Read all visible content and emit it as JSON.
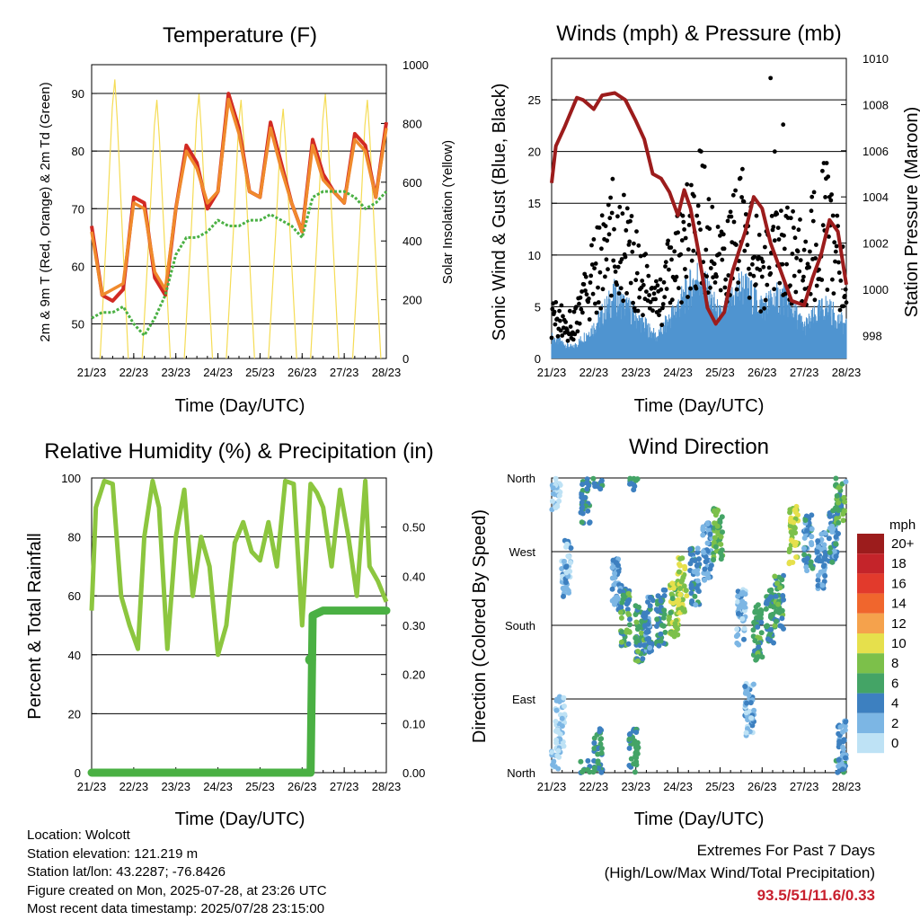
{
  "panels": {
    "temperature": {
      "title": "Temperature (F)",
      "ylabel_left": "2m & 9m T (Red, Orange) & 2m Td (Green)",
      "ylabel_right": "Solar Insolation (Yellow)",
      "xlabel": "Time (Day/UTC)"
    },
    "winds": {
      "title": "Winds (mph) & Pressure (mb)",
      "ylabel_left": "Sonic Wind & Gust (Blue, Black)",
      "ylabel_right": "Station Pressure (Maroon)",
      "xlabel": "Time (Day/UTC)"
    },
    "humidity": {
      "title": "Relative Humidity (%) & Precipitation (in)",
      "ylabel_left": "Percent & Total Rainfall",
      "xlabel": "Time (Day/UTC)"
    },
    "direction": {
      "title": "Wind Direction",
      "ylabel_left": "Direction (Colored By Speed)",
      "xlabel": "Time (Day/UTC)",
      "legend_title": "mph"
    }
  },
  "info": {
    "location": "Location: Wolcott",
    "elevation": "Station elevation: 121.219 m",
    "latlon": "Station lat/lon: 43.2287; -76.8426",
    "created": "Figure created on Mon, 2025-07-28, at 23:26 UTC",
    "timestamp": "Most recent data timestamp: 2025/07/28 23:15:00"
  },
  "extremes": {
    "line1": "Extremes For Past 7 Days",
    "line2": "(High/Low/Max Wind/Total Precipitation)",
    "values": "93.5/51/11.6/0.33"
  },
  "colors": {
    "temp_2m": "#d22a23",
    "temp_9m": "#f08a2c",
    "dewpoint": "#4ab043",
    "solar": "#f5dc55",
    "wind": "#4f94d0",
    "gust": "#000000",
    "pressure": "#9c1c1c",
    "rh": "#8cc63f",
    "precip": "#4ab043"
  },
  "chart_data": [
    {
      "type": "line",
      "title": "Temperature (F)",
      "xlabel": "Time (Day/UTC)",
      "ylabel": "2m & 9m T (Red, Orange) & 2m Td (Green)",
      "ylabel_right": "Solar Insolation (Yellow)",
      "x_ticks": [
        "21/23",
        "22/23",
        "23/23",
        "24/23",
        "25/23",
        "26/23",
        "27/23",
        "28/23"
      ],
      "x": [
        0,
        0.25,
        0.5,
        0.75,
        1,
        1.25,
        1.5,
        1.75,
        2,
        2.25,
        2.5,
        2.75,
        3,
        3.25,
        3.5,
        3.75,
        4,
        4.25,
        4.5,
        4.75,
        5,
        5.25,
        5.5,
        5.75,
        6,
        6.25,
        6.5,
        6.75,
        7
      ],
      "ylim": [
        44,
        95
      ],
      "y_ticks": [
        50,
        60,
        70,
        80,
        90
      ],
      "ylim_right": [
        0,
        1000
      ],
      "y_ticks_right": [
        0,
        200,
        400,
        600,
        800,
        1000
      ],
      "grid": true,
      "series": [
        {
          "name": "2m T",
          "color": "#d22a23",
          "values": [
            67,
            55,
            54,
            56,
            72,
            71,
            58,
            55,
            70,
            81,
            78,
            70,
            73,
            90,
            84,
            73,
            72,
            85,
            78,
            71,
            66,
            82,
            76,
            73,
            71,
            83,
            81,
            72,
            85
          ]
        },
        {
          "name": "9m T",
          "color": "#f08a2c",
          "values": [
            66,
            55,
            56,
            57,
            71,
            70,
            59,
            56,
            70,
            80,
            77,
            71,
            73,
            89,
            83,
            73,
            72,
            84,
            77,
            71,
            66,
            81,
            75,
            73,
            71,
            82,
            80,
            72,
            84
          ]
        },
        {
          "name": "2m Td",
          "color": "#4ab043",
          "values": [
            51,
            52,
            52,
            53,
            50,
            48,
            51,
            55,
            62,
            65,
            65,
            66,
            68,
            67,
            67,
            68,
            68,
            69,
            68,
            67,
            65,
            72,
            73,
            73,
            73,
            72,
            70,
            71,
            73
          ]
        }
      ],
      "solar_peak_days": [
        0.55,
        1.55,
        2.55,
        3.55,
        4.55,
        5.55,
        6.55
      ],
      "solar_peak_values": [
        950,
        880,
        900,
        880,
        850,
        900,
        880
      ]
    },
    {
      "type": "line",
      "title": "Winds (mph) & Pressure (mb)",
      "xlabel": "Time (Day/UTC)",
      "ylabel": "Sonic Wind & Gust (Blue, Black)",
      "ylabel_right": "Station Pressure (Maroon)",
      "x_ticks": [
        "21/23",
        "22/23",
        "23/23",
        "24/23",
        "25/23",
        "26/23",
        "27/23",
        "28/23"
      ],
      "ylim": [
        0,
        29
      ],
      "y_ticks": [
        0,
        5,
        10,
        15,
        20,
        25
      ],
      "ylim_right": [
        997,
        1010
      ],
      "y_ticks_right": [
        998,
        1000,
        1002,
        1004,
        1006,
        1008,
        1010
      ],
      "grid": true,
      "series": [
        {
          "name": "Pressure",
          "color": "#9c1c1c",
          "x": [
            0,
            0.1,
            0.3,
            0.6,
            0.75,
            1,
            1.2,
            1.5,
            1.75,
            2,
            2.2,
            2.4,
            2.6,
            2.8,
            3,
            3.15,
            3.3,
            3.5,
            3.7,
            3.9,
            4.1,
            4.3,
            4.6,
            4.8,
            5,
            5.2,
            5.5,
            5.7,
            6,
            6.2,
            6.4,
            6.6,
            6.8,
            7
          ],
          "values": [
            1004.6,
            1006.2,
            1007.0,
            1008.3,
            1008.2,
            1007.8,
            1008.4,
            1008.5,
            1008.2,
            1007.3,
            1006.5,
            1005.0,
            1004.8,
            1004.2,
            1003.2,
            1004.3,
            1003.5,
            1001.5,
            999.2,
            998.5,
            999.0,
            1000.8,
            1002.5,
            1004.0,
            1003.5,
            1002.0,
            1000.5,
            999.5,
            999.3,
            1000.5,
            1001.5,
            1003.0,
            1002.5,
            1000.2
          ]
        },
        {
          "name": "Wind",
          "color": "#4f94d0",
          "x": [
            0,
            0.5,
            1,
            1.5,
            2,
            2.5,
            3,
            3.5,
            4,
            4.5,
            5,
            5.5,
            6,
            6.5,
            7
          ],
          "values": [
            2,
            1,
            3,
            6,
            4,
            2,
            5,
            8,
            4,
            7,
            5,
            6,
            3,
            5,
            3
          ]
        },
        {
          "name": "Gust",
          "color": "#000000",
          "x": [
            0,
            0.5,
            1,
            1.5,
            2,
            2.5,
            3,
            3.5,
            4,
            4.5,
            5,
            5.5,
            6,
            6.5,
            7
          ],
          "values": [
            4,
            3,
            8,
            12,
            9,
            5,
            10,
            14,
            8,
            13,
            8,
            11,
            9,
            13,
            7
          ]
        }
      ],
      "gust_outliers": [
        {
          "x": 5.2,
          "y": 27.1
        },
        {
          "x": 5.3,
          "y": 20.0
        },
        {
          "x": 5.5,
          "y": 22.6
        }
      ]
    },
    {
      "type": "line",
      "title": "Relative Humidity (%) & Precipitation (in)",
      "xlabel": "Time (Day/UTC)",
      "ylabel": "Percent & Total Rainfall",
      "x_ticks": [
        "21/23",
        "22/23",
        "23/23",
        "24/23",
        "25/23",
        "26/23",
        "27/23",
        "28/23"
      ],
      "ylim": [
        0,
        100
      ],
      "y_ticks": [
        0,
        20,
        40,
        60,
        80,
        100
      ],
      "ylim_right": [
        0,
        0.6
      ],
      "y_ticks_right": [
        "0.00",
        "0.10",
        "0.20",
        "0.30",
        "0.40",
        "0.50"
      ],
      "grid": true,
      "series": [
        {
          "name": "RH",
          "color": "#8cc63f",
          "x": [
            0,
            0.1,
            0.3,
            0.5,
            0.7,
            0.9,
            1.1,
            1.25,
            1.45,
            1.6,
            1.8,
            2,
            2.2,
            2.4,
            2.6,
            2.8,
            3,
            3.2,
            3.4,
            3.6,
            3.8,
            4,
            4.2,
            4.4,
            4.6,
            4.8,
            5,
            5.2,
            5.35,
            5.5,
            5.7,
            5.9,
            6.1,
            6.3,
            6.5,
            6.6,
            6.8,
            7
          ],
          "values": [
            55,
            90,
            99,
            98,
            60,
            50,
            42,
            80,
            99,
            90,
            42,
            80,
            96,
            60,
            80,
            70,
            40,
            50,
            78,
            85,
            75,
            72,
            85,
            70,
            99,
            98,
            50,
            98,
            95,
            90,
            70,
            96,
            80,
            60,
            99,
            70,
            65,
            58
          ]
        },
        {
          "name": "Precip",
          "color": "#4ab043",
          "x": [
            0,
            1,
            2,
            3,
            4,
            5,
            5.2,
            5.25,
            5.5,
            6,
            6.5,
            7
          ],
          "values": [
            0,
            0,
            0,
            0,
            0,
            0,
            0,
            0.32,
            0.33,
            0.33,
            0.33,
            0.33
          ]
        }
      ],
      "precip_scale_factor": 0.006
    },
    {
      "type": "scatter",
      "title": "Wind Direction",
      "xlabel": "Time (Day/UTC)",
      "ylabel": "Direction (Colored By Speed)",
      "x_ticks": [
        "21/23",
        "22/23",
        "23/23",
        "24/23",
        "25/23",
        "26/23",
        "27/23",
        "28/23"
      ],
      "y_ticks": [
        "North",
        "East",
        "South",
        "West",
        "North"
      ],
      "ylim": [
        0,
        360
      ],
      "grid": true,
      "clusters": [
        {
          "day": 0.1,
          "dir": 355,
          "speed": 1
        },
        {
          "day": 0.2,
          "dir": 60,
          "speed": 1
        },
        {
          "day": 0.35,
          "dir": 250,
          "speed": 2
        },
        {
          "day": 0.8,
          "dir": 340,
          "speed": 5
        },
        {
          "day": 1.1,
          "dir": 20,
          "speed": 5
        },
        {
          "day": 1.55,
          "dir": 230,
          "speed": 3
        },
        {
          "day": 1.75,
          "dir": 190,
          "speed": 6
        },
        {
          "day": 1.95,
          "dir": 20,
          "speed": 5
        },
        {
          "day": 2.1,
          "dir": 170,
          "speed": 6
        },
        {
          "day": 2.3,
          "dir": 180,
          "speed": 4
        },
        {
          "day": 2.6,
          "dir": 190,
          "speed": 5
        },
        {
          "day": 2.9,
          "dir": 200,
          "speed": 8
        },
        {
          "day": 3.1,
          "dir": 230,
          "speed": 9
        },
        {
          "day": 3.4,
          "dir": 240,
          "speed": 4
        },
        {
          "day": 3.7,
          "dir": 270,
          "speed": 3
        },
        {
          "day": 3.95,
          "dir": 290,
          "speed": 7
        },
        {
          "day": 4.5,
          "dir": 190,
          "speed": 2
        },
        {
          "day": 4.7,
          "dir": 80,
          "speed": 2
        },
        {
          "day": 4.9,
          "dir": 170,
          "speed": 6
        },
        {
          "day": 5.2,
          "dir": 190,
          "speed": 5
        },
        {
          "day": 5.4,
          "dir": 210,
          "speed": 6
        },
        {
          "day": 5.75,
          "dir": 290,
          "speed": 9
        },
        {
          "day": 6.1,
          "dir": 280,
          "speed": 4
        },
        {
          "day": 6.4,
          "dir": 260,
          "speed": 3
        },
        {
          "day": 6.7,
          "dir": 290,
          "speed": 4
        },
        {
          "day": 6.85,
          "dir": 340,
          "speed": 6
        },
        {
          "day": 6.9,
          "dir": 30,
          "speed": 3
        }
      ],
      "legend": {
        "title": "mph",
        "labels": [
          "20+",
          "18",
          "16",
          "14",
          "12",
          "10",
          "8",
          "6",
          "4",
          "2",
          "0"
        ],
        "colors": [
          "#9c1c1c",
          "#c4242a",
          "#e23a2c",
          "#f0662d",
          "#f5a24c",
          "#e6e04c",
          "#7cc04a",
          "#44a466",
          "#3d80c0",
          "#7cb6e4",
          "#bee2f5"
        ]
      }
    }
  ]
}
